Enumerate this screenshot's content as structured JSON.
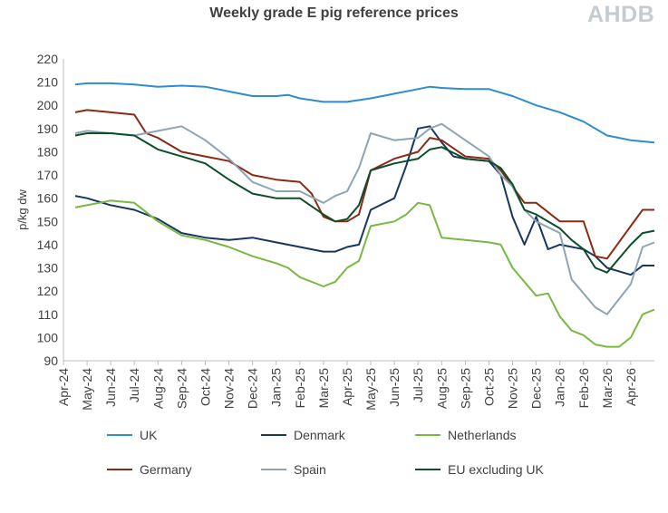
{
  "header": {
    "title": "Weekly grade E pig reference prices",
    "logo_text": "AHDB"
  },
  "chart_data": {
    "type": "line",
    "title": "Weekly grade E pig reference prices",
    "ylabel": "p/kg dw",
    "xlabel": "",
    "ylim": [
      90,
      220
    ],
    "yticks": [
      90,
      100,
      110,
      120,
      130,
      140,
      150,
      160,
      170,
      180,
      190,
      200,
      210,
      220
    ],
    "x_tick_labels": [
      "Apr-24",
      "May-24",
      "Jun-24",
      "Jul-24",
      "Aug-24",
      "Sep-24",
      "Oct-24",
      "Nov-24",
      "Dec-24",
      "Jan-25",
      "Feb-25",
      "Mar-25",
      "Apr-25",
      "May-25",
      "Jun-25",
      "Jul-25",
      "Aug-25",
      "Sep-25",
      "Oct-25",
      "Nov-25",
      "Dec-25",
      "Jan-26",
      "Feb-26",
      "Mar-26",
      "Apr-26"
    ],
    "x_axis_unit": "months since Apr-24",
    "x_max": 25,
    "legend_position": "bottom",
    "grid": false,
    "series": [
      {
        "name": "UK",
        "color": "#2e8ccf",
        "points": [
          [
            0.5,
            209
          ],
          [
            1,
            209.5
          ],
          [
            2,
            209.5
          ],
          [
            3,
            209
          ],
          [
            4,
            208
          ],
          [
            5,
            208.5
          ],
          [
            6,
            208
          ],
          [
            7,
            206
          ],
          [
            8,
            204
          ],
          [
            9,
            204
          ],
          [
            9.5,
            204.5
          ],
          [
            10,
            203
          ],
          [
            11,
            201.5
          ],
          [
            12,
            201.5
          ],
          [
            13,
            203
          ],
          [
            14,
            205
          ],
          [
            15,
            207
          ],
          [
            15.5,
            208
          ],
          [
            16,
            207.5
          ],
          [
            17,
            207
          ],
          [
            18,
            207
          ],
          [
            19,
            204
          ],
          [
            20,
            200
          ],
          [
            21,
            197
          ],
          [
            22,
            193
          ],
          [
            23,
            187
          ],
          [
            24,
            185
          ],
          [
            25,
            184
          ]
        ]
      },
      {
        "name": "Denmark",
        "color": "#17375e",
        "points": [
          [
            0.5,
            161
          ],
          [
            1,
            160
          ],
          [
            2,
            157
          ],
          [
            3,
            155
          ],
          [
            4,
            151
          ],
          [
            5,
            145
          ],
          [
            6,
            143
          ],
          [
            7,
            142
          ],
          [
            8,
            143
          ],
          [
            9,
            141
          ],
          [
            10,
            139
          ],
          [
            11,
            137
          ],
          [
            11.5,
            137
          ],
          [
            12,
            139
          ],
          [
            12.5,
            140
          ],
          [
            13,
            155
          ],
          [
            14,
            160
          ],
          [
            14.5,
            174
          ],
          [
            15,
            190
          ],
          [
            15.5,
            191
          ],
          [
            16,
            184
          ],
          [
            16.5,
            178
          ],
          [
            17,
            177
          ],
          [
            18,
            176
          ],
          [
            18.5,
            170
          ],
          [
            19,
            152
          ],
          [
            19.5,
            140
          ],
          [
            20,
            152
          ],
          [
            20.5,
            138
          ],
          [
            21,
            140
          ],
          [
            22,
            138
          ],
          [
            22.5,
            135
          ],
          [
            23,
            130
          ],
          [
            24,
            127
          ],
          [
            24.5,
            131
          ],
          [
            25,
            131
          ]
        ]
      },
      {
        "name": "Netherlands",
        "color": "#77b943",
        "points": [
          [
            0.5,
            156
          ],
          [
            1,
            157
          ],
          [
            2,
            159
          ],
          [
            3,
            158
          ],
          [
            4,
            150
          ],
          [
            5,
            144
          ],
          [
            6,
            142
          ],
          [
            7,
            139
          ],
          [
            8,
            135
          ],
          [
            9,
            132
          ],
          [
            9.5,
            130
          ],
          [
            10,
            126
          ],
          [
            11,
            122
          ],
          [
            11.5,
            124
          ],
          [
            12,
            130
          ],
          [
            12.5,
            133
          ],
          [
            13,
            148
          ],
          [
            14,
            150
          ],
          [
            14.5,
            153
          ],
          [
            15,
            158
          ],
          [
            15.5,
            157
          ],
          [
            16,
            143
          ],
          [
            17,
            142
          ],
          [
            18,
            141
          ],
          [
            18.5,
            140
          ],
          [
            19,
            130
          ],
          [
            20,
            118
          ],
          [
            20.5,
            119
          ],
          [
            21,
            109
          ],
          [
            21.5,
            103
          ],
          [
            22,
            101
          ],
          [
            22.5,
            97
          ],
          [
            23,
            96
          ],
          [
            23.5,
            96
          ],
          [
            24,
            100
          ],
          [
            24.5,
            110
          ],
          [
            25,
            112
          ]
        ]
      },
      {
        "name": "Germany",
        "color": "#8b2a14",
        "points": [
          [
            0.5,
            197
          ],
          [
            1,
            198
          ],
          [
            2,
            197
          ],
          [
            3,
            196
          ],
          [
            3.5,
            188
          ],
          [
            4,
            186
          ],
          [
            5,
            180
          ],
          [
            6,
            178
          ],
          [
            7,
            176
          ],
          [
            8,
            170
          ],
          [
            9,
            168
          ],
          [
            10,
            167
          ],
          [
            10.5,
            162
          ],
          [
            11,
            152
          ],
          [
            11.5,
            150
          ],
          [
            12,
            150
          ],
          [
            12.5,
            153
          ],
          [
            13,
            172
          ],
          [
            14,
            177
          ],
          [
            15,
            180
          ],
          [
            15.5,
            186
          ],
          [
            16,
            185
          ],
          [
            17,
            178
          ],
          [
            18,
            177
          ],
          [
            18.5,
            172
          ],
          [
            19,
            165
          ],
          [
            19.5,
            158
          ],
          [
            20,
            158
          ],
          [
            21,
            150
          ],
          [
            21.5,
            150
          ],
          [
            22,
            150
          ],
          [
            22.5,
            135
          ],
          [
            23,
            134
          ],
          [
            24,
            148
          ],
          [
            24.5,
            155
          ],
          [
            25,
            155
          ]
        ]
      },
      {
        "name": "Spain",
        "color": "#8fa4b3",
        "points": [
          [
            0.5,
            188
          ],
          [
            1,
            189
          ],
          [
            2,
            188
          ],
          [
            3,
            187
          ],
          [
            4,
            189
          ],
          [
            5,
            191
          ],
          [
            6,
            185
          ],
          [
            7,
            177
          ],
          [
            8,
            167
          ],
          [
            9,
            163
          ],
          [
            10,
            163
          ],
          [
            11,
            158
          ],
          [
            11.5,
            161
          ],
          [
            12,
            163
          ],
          [
            12.5,
            173
          ],
          [
            13,
            188
          ],
          [
            14,
            185
          ],
          [
            15,
            186
          ],
          [
            15.5,
            190
          ],
          [
            16,
            192
          ],
          [
            17,
            185
          ],
          [
            18,
            178
          ],
          [
            18.5,
            170
          ],
          [
            19,
            165
          ],
          [
            19.5,
            155
          ],
          [
            20,
            150
          ],
          [
            21,
            145
          ],
          [
            21.5,
            125
          ],
          [
            22,
            119
          ],
          [
            22.5,
            113
          ],
          [
            23,
            110
          ],
          [
            24,
            123
          ],
          [
            24.5,
            139
          ],
          [
            25,
            141
          ]
        ]
      },
      {
        "name": "EU excluding UK",
        "color": "#0d4d2a",
        "points": [
          [
            0.5,
            187
          ],
          [
            1,
            188
          ],
          [
            2,
            188
          ],
          [
            3,
            187
          ],
          [
            4,
            181
          ],
          [
            5,
            178
          ],
          [
            6,
            175
          ],
          [
            7,
            168
          ],
          [
            8,
            162
          ],
          [
            9,
            160
          ],
          [
            10,
            160
          ],
          [
            11,
            153
          ],
          [
            11.5,
            150
          ],
          [
            12,
            151
          ],
          [
            12.5,
            157
          ],
          [
            13,
            172
          ],
          [
            14,
            175
          ],
          [
            15,
            177
          ],
          [
            15.5,
            181
          ],
          [
            16,
            182
          ],
          [
            17,
            177
          ],
          [
            18,
            176
          ],
          [
            18.5,
            173
          ],
          [
            19,
            166
          ],
          [
            19.5,
            155
          ],
          [
            20,
            153
          ],
          [
            21,
            147
          ],
          [
            21.5,
            142
          ],
          [
            22,
            138
          ],
          [
            22.5,
            130
          ],
          [
            23,
            128
          ],
          [
            24,
            140
          ],
          [
            24.5,
            145
          ],
          [
            25,
            146
          ]
        ]
      }
    ]
  }
}
